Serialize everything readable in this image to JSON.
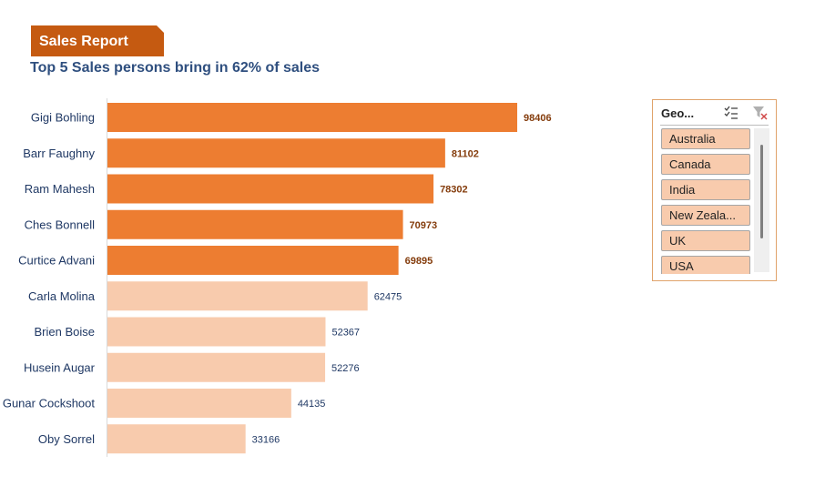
{
  "report": {
    "badge": "Sales Report",
    "subtitle": "Top 5 Sales persons bring in 62% of sales"
  },
  "chart_data": {
    "type": "bar",
    "orientation": "horizontal",
    "categories": [
      "Gigi Bohling",
      "Barr Faughny",
      "Ram Mahesh",
      "Ches Bonnell",
      "Curtice Advani",
      "Carla Molina",
      "Brien Boise",
      "Husein Augar",
      "Gunar Cockshoot",
      "Oby Sorrel"
    ],
    "values": [
      98406,
      81102,
      78302,
      70973,
      69895,
      62475,
      52367,
      52276,
      44135,
      33166
    ],
    "highlight_top": 5,
    "colors": {
      "highlight_bar": "#ed7d31",
      "normal_bar": "#f8cbad",
      "highlight_label": "#843c0c",
      "normal_label": "#1f3864",
      "category_label": "#1f3864"
    }
  },
  "slicer": {
    "title": "Geo...",
    "multiselect_icon": "multiselect-icon",
    "clear_filter_icon": "clear-filter-icon",
    "items": [
      "Australia",
      "Canada",
      "India",
      "New Zeala...",
      "UK",
      "USA"
    ]
  }
}
